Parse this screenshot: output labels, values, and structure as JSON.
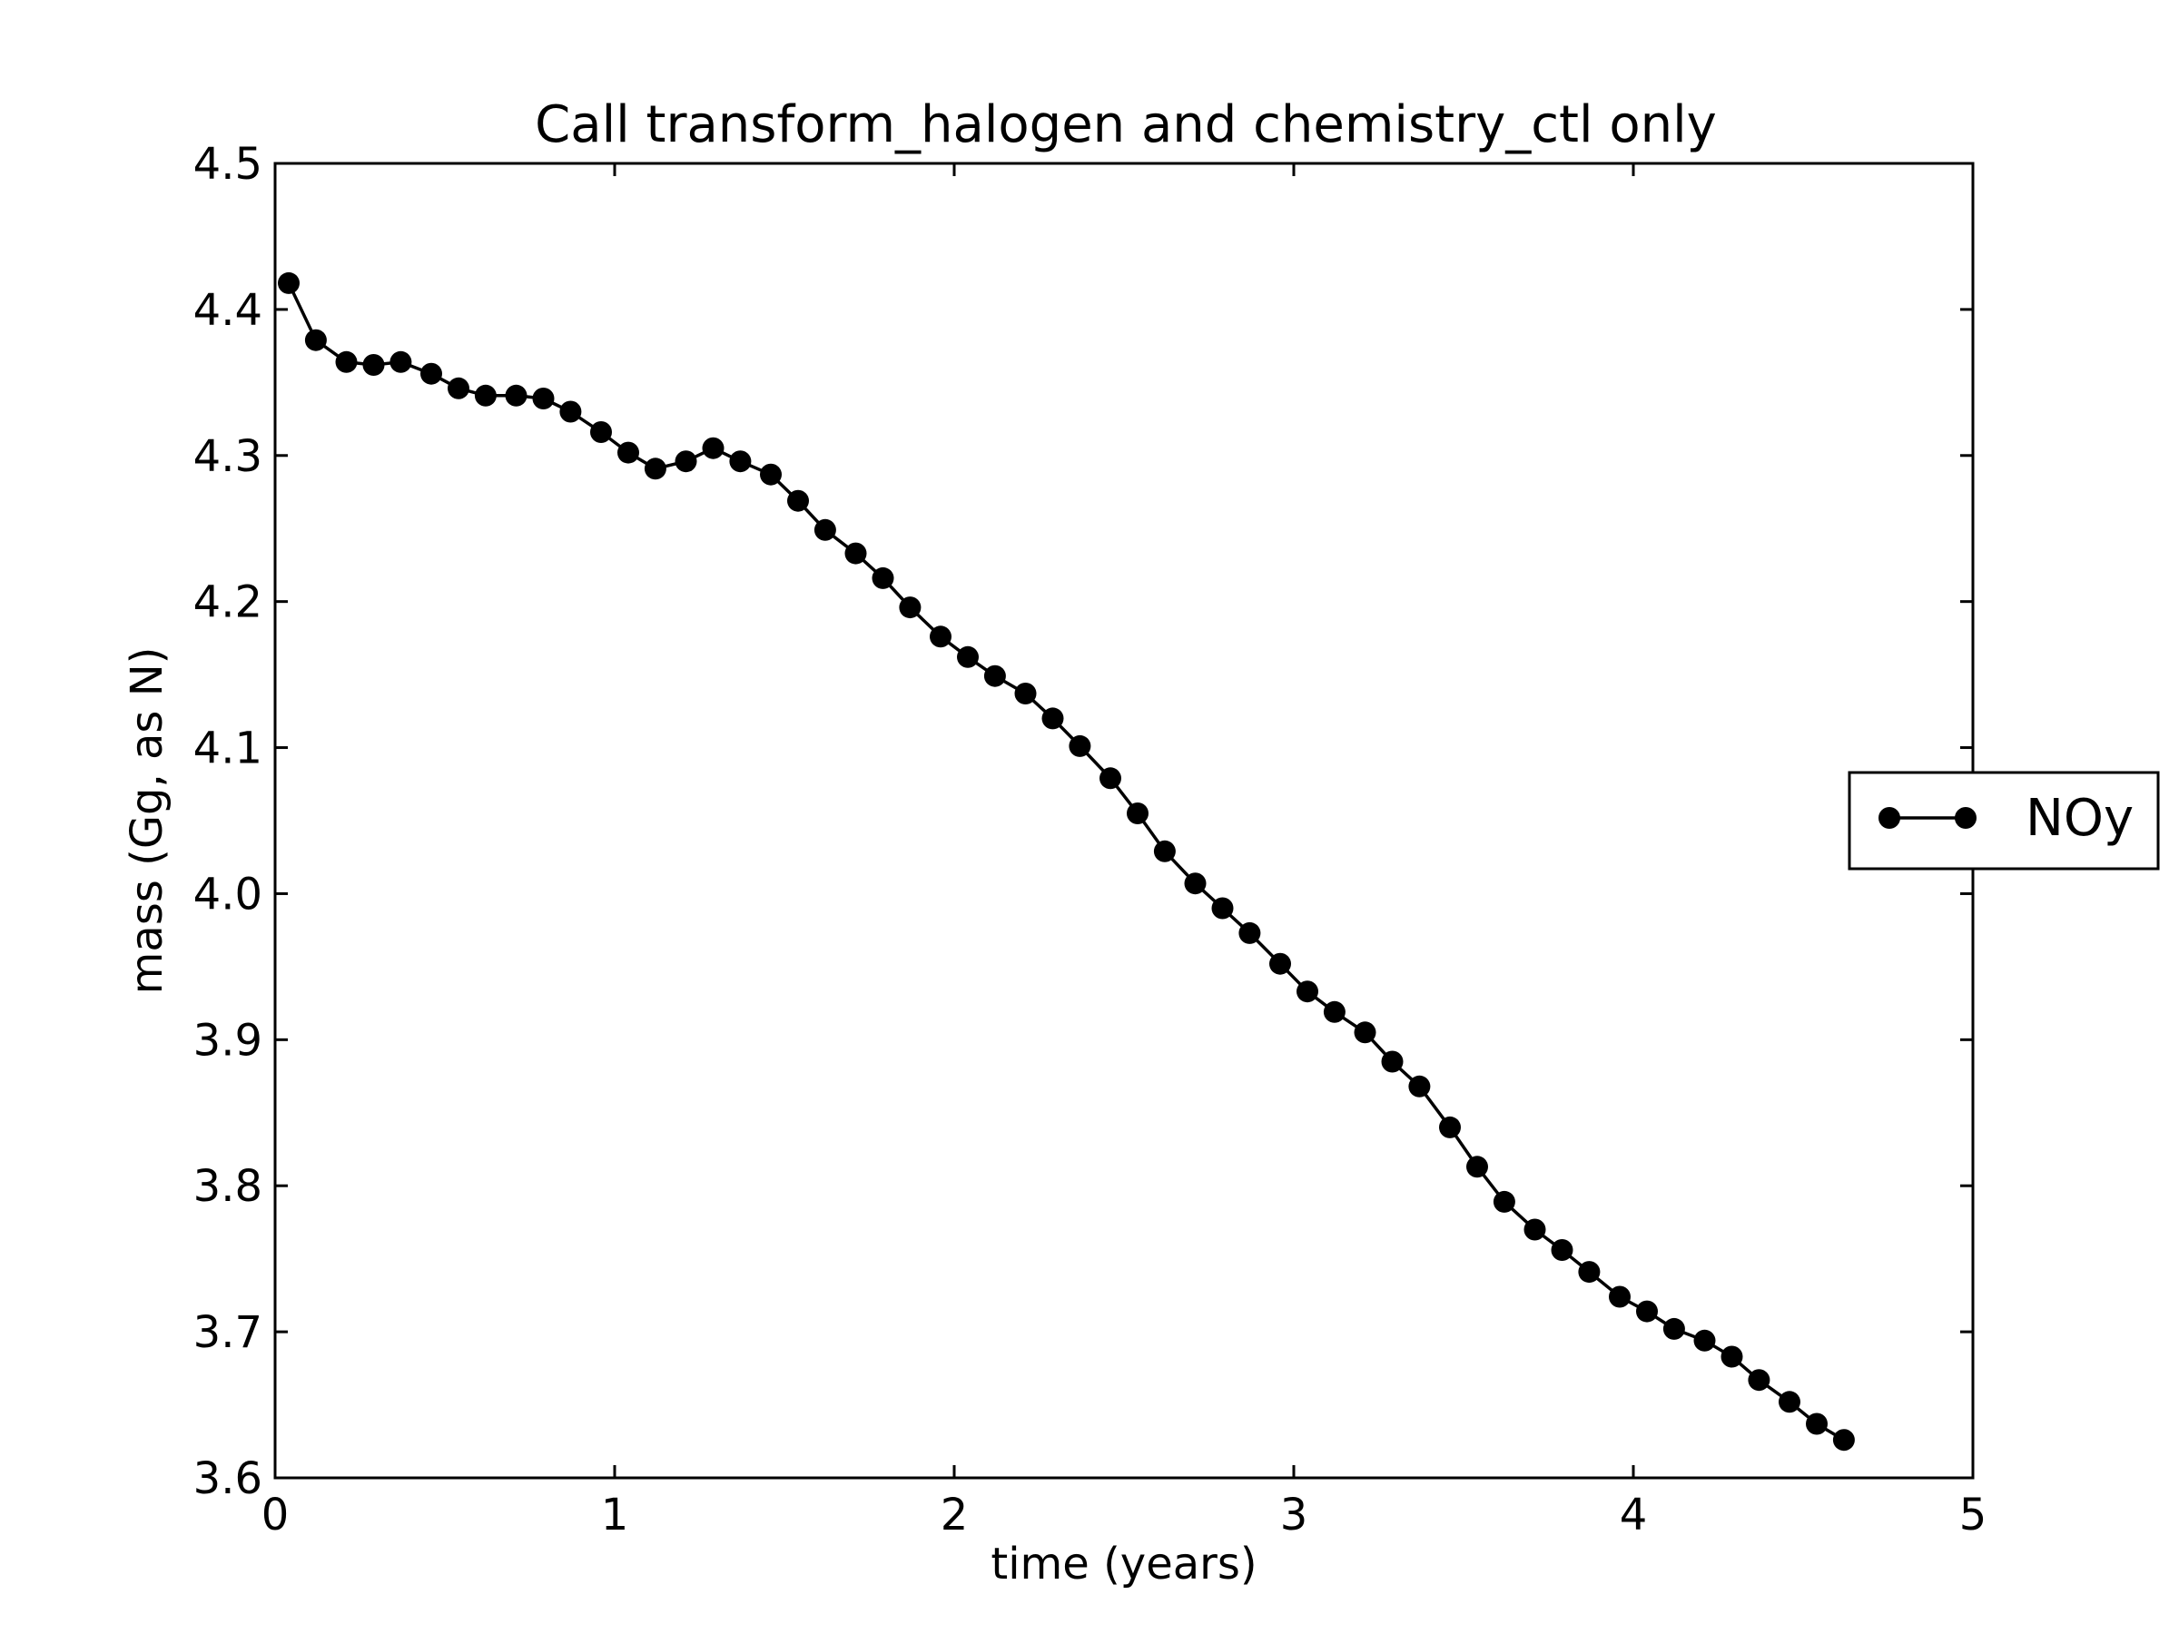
{
  "chart_data": {
    "type": "line",
    "title": "Call transform_halogen and chemistry_ctl only",
    "xlabel": "time (years)",
    "ylabel": "mass (Gg, as N)",
    "xlim": [
      0,
      5
    ],
    "ylim": [
      3.6,
      4.5
    ],
    "xticks": [
      "0",
      "1",
      "2",
      "3",
      "4",
      "5"
    ],
    "yticks": [
      "3.6",
      "3.7",
      "3.8",
      "3.9",
      "4.0",
      "4.1",
      "4.2",
      "4.3",
      "4.4",
      "4.5"
    ],
    "grid": false,
    "legend_position": "center-right, outside plot",
    "series": [
      {
        "name": "NOy",
        "color": "#000000",
        "marker": "circle",
        "x": [
          0.04,
          0.12,
          0.21,
          0.29,
          0.37,
          0.46,
          0.54,
          0.62,
          0.71,
          0.79,
          0.87,
          0.96,
          1.04,
          1.12,
          1.21,
          1.29,
          1.37,
          1.46,
          1.54,
          1.62,
          1.71,
          1.79,
          1.87,
          1.96,
          2.04,
          2.12,
          2.21,
          2.29,
          2.37,
          2.46,
          2.54,
          2.62,
          2.71,
          2.79,
          2.87,
          2.96,
          3.04,
          3.12,
          3.21,
          3.29,
          3.37,
          3.46,
          3.54,
          3.62,
          3.71,
          3.79,
          3.87,
          3.96,
          4.04,
          4.12,
          4.21,
          4.29,
          4.37,
          4.46,
          4.54,
          4.62
        ],
        "y": [
          4.418,
          4.379,
          4.364,
          4.362,
          4.364,
          4.356,
          4.346,
          4.341,
          4.341,
          4.339,
          4.33,
          4.316,
          4.302,
          4.291,
          4.296,
          4.305,
          4.296,
          4.287,
          4.269,
          4.249,
          4.233,
          4.216,
          4.196,
          4.176,
          4.162,
          4.149,
          4.137,
          4.12,
          4.101,
          4.079,
          4.055,
          4.029,
          4.007,
          3.99,
          3.973,
          3.952,
          3.933,
          3.919,
          3.905,
          3.885,
          3.868,
          3.84,
          3.813,
          3.789,
          3.77,
          3.756,
          3.741,
          3.724,
          3.714,
          3.702,
          3.694,
          3.683,
          3.667,
          3.652,
          3.637,
          3.626
        ]
      }
    ]
  }
}
